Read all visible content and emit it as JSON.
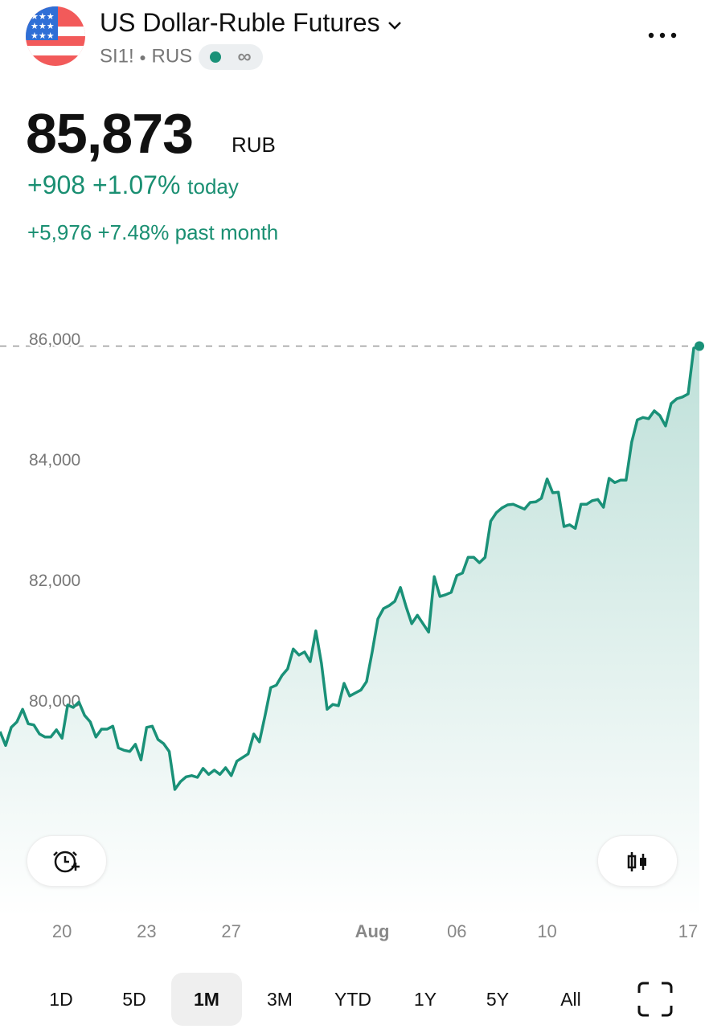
{
  "header": {
    "title": "US Dollar-Ruble Futures",
    "symbol": "SI1!",
    "exchange": "RUS"
  },
  "quote": {
    "price": "85,873",
    "currency": "RUB",
    "change": "+908",
    "change_percent": "+1.07%",
    "change_period": "today",
    "month_change": "+5,976",
    "month_change_percent": "+7.48%",
    "month_period": "past month"
  },
  "chart_data": {
    "type": "line",
    "color": "#1a9178",
    "values": [
      79480,
      79250,
      79550,
      79640,
      79850,
      79610,
      79590,
      79440,
      79390,
      79390,
      79510,
      79370,
      79920,
      79880,
      79970,
      79750,
      79640,
      79390,
      79520,
      79520,
      79570,
      79210,
      79170,
      79150,
      79270,
      79010,
      79550,
      79570,
      79350,
      79280,
      79150,
      78520,
      78650,
      78730,
      78750,
      78720,
      78870,
      78770,
      78840,
      78770,
      78880,
      78750,
      78990,
      79050,
      79110,
      79440,
      79310,
      79750,
      80210,
      80250,
      80410,
      80520,
      80850,
      80750,
      80800,
      80640,
      81150,
      80610,
      79850,
      79930,
      79910,
      80280,
      80070,
      80120,
      80170,
      80310,
      80810,
      81350,
      81520,
      81570,
      81640,
      81870,
      81550,
      81270,
      81410,
      81270,
      81130,
      82050,
      81720,
      81750,
      81790,
      82070,
      82110,
      82370,
      82370,
      82280,
      82370,
      82970,
      83110,
      83190,
      83240,
      83250,
      83210,
      83170,
      83280,
      83290,
      83350,
      83670,
      83440,
      83450,
      82880,
      82910,
      82850,
      83250,
      83250,
      83310,
      83330,
      83200,
      83680,
      83610,
      83650,
      83650,
      84280,
      84650,
      84690,
      84670,
      84800,
      84720,
      84550,
      84920,
      85000,
      85030,
      85080,
      85840,
      85873
    ],
    "xlim": [
      0,
      124
    ],
    "xticks": [
      {
        "value": 11,
        "label": "20"
      },
      {
        "value": 26,
        "label": "23"
      },
      {
        "value": 41,
        "label": "27"
      },
      {
        "value": 66,
        "label": "Aug"
      },
      {
        "value": 81,
        "label": "06"
      },
      {
        "value": 97,
        "label": "10"
      },
      {
        "value": 122,
        "label": "17"
      }
    ],
    "ylim": [
      76400,
      87200
    ],
    "yticks": [
      {
        "value": 80000,
        "label": "80,000"
      },
      {
        "value": 82000,
        "label": "82,000"
      },
      {
        "value": 84000,
        "label": "84,000"
      },
      {
        "value": 86000,
        "label": "86,000"
      }
    ],
    "last_value_line": true,
    "area_fill": true
  },
  "ranges": {
    "options": [
      "1D",
      "5D",
      "1M",
      "3M",
      "YTD",
      "1Y",
      "5Y",
      "All"
    ],
    "selected_index": 2
  }
}
